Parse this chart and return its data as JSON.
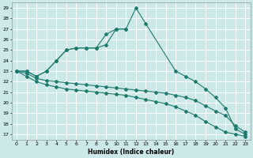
{
  "title": "",
  "xlabel": "Humidex (Indice chaleur)",
  "bg_color": "#cce8e8",
  "grid_color": "#ffffff",
  "line_color": "#1f7a6e",
  "xlim": [
    -0.5,
    23.5
  ],
  "ylim": [
    16.5,
    29.5
  ],
  "yticks": [
    17,
    18,
    19,
    20,
    21,
    22,
    23,
    24,
    25,
    26,
    27,
    28,
    29
  ],
  "xticks": [
    0,
    1,
    2,
    3,
    4,
    5,
    6,
    7,
    8,
    9,
    10,
    11,
    12,
    13,
    14,
    15,
    16,
    17,
    18,
    19,
    20,
    21,
    22,
    23
  ],
  "s1_x": [
    0,
    1,
    2,
    3,
    4,
    5,
    6,
    7,
    8,
    9,
    10,
    11,
    12,
    13,
    16,
    17,
    18,
    19,
    20,
    21,
    22,
    23
  ],
  "s1_y": [
    23.0,
    23.0,
    22.5,
    23.0,
    24.0,
    25.0,
    25.2,
    25.2,
    25.2,
    25.5,
    27.0,
    27.0,
    29.0,
    27.5,
    23.0,
    22.5,
    22.0,
    21.3,
    20.5,
    19.5,
    17.5,
    17.0
  ],
  "s2_x": [
    0,
    1,
    2,
    3,
    4,
    5,
    6,
    7,
    8,
    9,
    10,
    11
  ],
  "s2_y": [
    23.0,
    23.0,
    22.5,
    23.0,
    24.0,
    25.0,
    25.2,
    25.2,
    25.2,
    26.5,
    27.0,
    27.0
  ],
  "s3_x": [
    0,
    1,
    2,
    3,
    4,
    5,
    6,
    7,
    8,
    9,
    10,
    11,
    12,
    13,
    14,
    15,
    16,
    17,
    18,
    19,
    20,
    21,
    22,
    23
  ],
  "s3_y": [
    23.0,
    22.8,
    22.3,
    22.1,
    22.0,
    21.9,
    21.8,
    21.7,
    21.6,
    21.5,
    21.4,
    21.3,
    21.2,
    21.1,
    21.0,
    20.9,
    20.7,
    20.5,
    20.2,
    19.7,
    19.2,
    18.8,
    17.8,
    17.2
  ],
  "s4_x": [
    0,
    1,
    2,
    3,
    4,
    5,
    6,
    7,
    8,
    9,
    10,
    11,
    12,
    13,
    14,
    15,
    16,
    17,
    18,
    19,
    20,
    21,
    22,
    23
  ],
  "s4_y": [
    23.0,
    22.5,
    22.0,
    21.7,
    21.5,
    21.3,
    21.2,
    21.1,
    21.0,
    20.9,
    20.8,
    20.7,
    20.5,
    20.3,
    20.1,
    19.9,
    19.6,
    19.2,
    18.8,
    18.2,
    17.7,
    17.2,
    17.0,
    16.8
  ]
}
